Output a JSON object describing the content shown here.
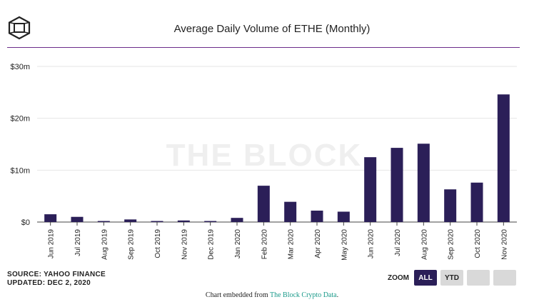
{
  "header": {
    "title": "Average Daily Volume of ETHE (Monthly)",
    "logo_icon": "cube-logo-icon"
  },
  "chart_data": {
    "type": "bar",
    "title": "Average Daily Volume of ETHE (Monthly)",
    "xlabel": "",
    "ylabel": "",
    "categories": [
      "Jun 2019",
      "Jul 2019",
      "Aug 2019",
      "Sep 2019",
      "Oct 2019",
      "Nov 2019",
      "Dec 2019",
      "Jan 2020",
      "Feb 2020",
      "Mar 2020",
      "Apr 2020",
      "May 2020",
      "Jun 2020",
      "Jul 2020",
      "Aug 2020",
      "Sep 2020",
      "Oct 2020",
      "Nov 2020"
    ],
    "values": [
      1.5,
      1.0,
      0.2,
      0.5,
      0.2,
      0.3,
      0.2,
      0.8,
      7.0,
      3.9,
      2.2,
      2.0,
      12.5,
      14.3,
      15.1,
      6.3,
      7.6,
      24.6
    ],
    "unit": "m",
    "ylim": [
      0,
      30
    ],
    "yticks": [
      0,
      10,
      20,
      30
    ],
    "ytick_labels": [
      "$0",
      "$10m",
      "$20m",
      "$30m"
    ],
    "grid": true,
    "bar_color": "#2b1f58",
    "watermark": "THE BLOCK"
  },
  "footer": {
    "source": "SOURCE: YAHOO FINANCE",
    "updated": "UPDATED: DEC 2, 2020",
    "zoom_label": "ZOOM",
    "zoom_all": "ALL",
    "zoom_ytd": "YTD",
    "embed_prefix": "Chart embedded from ",
    "embed_link": "The Block Crypto Data",
    "embed_suffix": "."
  },
  "colors": {
    "accent_rule": "#6b2d8a",
    "bar": "#2b1f58",
    "link": "#1a9a8a"
  }
}
